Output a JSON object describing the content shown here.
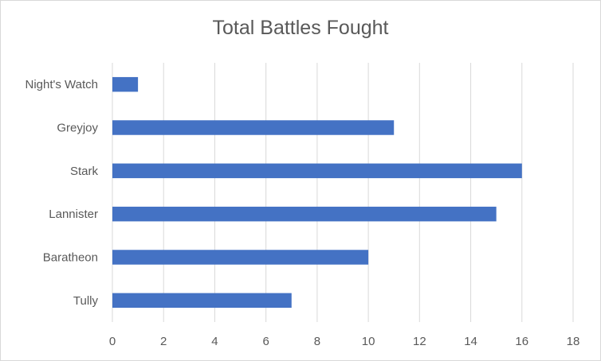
{
  "chart_data": {
    "type": "bar",
    "orientation": "horizontal",
    "title": "Total Battles Fought",
    "categories": [
      "Night's Watch",
      "Greyjoy",
      "Stark",
      "Lannister",
      "Baratheon",
      "Tully"
    ],
    "values": [
      1,
      11,
      16,
      15,
      10,
      7
    ],
    "xlim": [
      0,
      18
    ],
    "xticks": [
      0,
      2,
      4,
      6,
      8,
      10,
      12,
      14,
      16,
      18
    ],
    "xlabel": "",
    "ylabel": "",
    "grid": true,
    "legend": "none",
    "bar_color": "#4472c4",
    "grid_color": "#d9d9d9"
  }
}
